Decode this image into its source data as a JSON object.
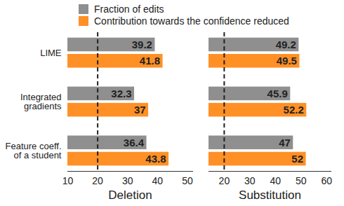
{
  "chart_data": [
    {
      "type": "bar",
      "orientation": "horizontal",
      "xlabel": "Deletion",
      "categories": [
        "LIME",
        "Integrated gradients",
        "Feature coeff. of a student"
      ],
      "series": [
        {
          "name": "Fraction of edits",
          "color": "#8f8f8f",
          "values": [
            39.2,
            32.3,
            36.4
          ]
        },
        {
          "name": "Contribution towards the confidence reduced",
          "color": "#ff9026",
          "values": [
            41.8,
            37,
            43.8
          ]
        }
      ],
      "xlim": [
        10,
        52
      ],
      "xticks": [
        10,
        20,
        30,
        40,
        50
      ],
      "reference_x": 20,
      "data_labels": true,
      "legend": "top",
      "grid": false
    },
    {
      "type": "bar",
      "orientation": "horizontal",
      "xlabel": "Substitution",
      "categories": [
        "LIME",
        "Integrated gradients",
        "Feature coeff. of a student"
      ],
      "series": [
        {
          "name": "Fraction of edits",
          "color": "#8f8f8f",
          "values": [
            49.2,
            45.9,
            47
          ]
        },
        {
          "name": "Contribution towards the confidence reduced",
          "color": "#ff9026",
          "values": [
            49.5,
            52.2,
            52
          ]
        }
      ],
      "xlim": [
        14,
        62
      ],
      "xticks": [
        20,
        30,
        40,
        50,
        60
      ],
      "reference_x": 20,
      "data_labels": true,
      "grid": false,
      "tick_labels": "x"
    }
  ]
}
